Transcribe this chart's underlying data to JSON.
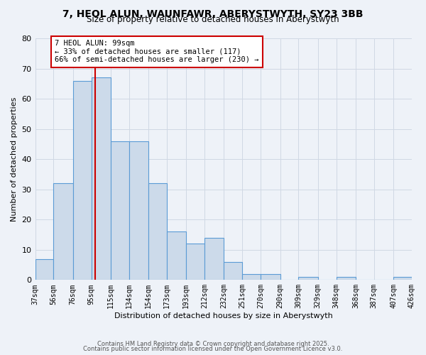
{
  "title": "7, HEOL ALUN, WAUNFAWR, ABERYSTWYTH, SY23 3BB",
  "subtitle": "Size of property relative to detached houses in Aberystwyth",
  "xlabel": "Distribution of detached houses by size in Aberystwyth",
  "ylabel": "Number of detached properties",
  "bins": [
    37,
    56,
    76,
    95,
    115,
    134,
    154,
    173,
    193,
    212,
    232,
    251,
    270,
    290,
    309,
    329,
    348,
    368,
    387,
    407,
    426
  ],
  "counts": [
    7,
    32,
    66,
    67,
    46,
    46,
    32,
    16,
    12,
    14,
    6,
    2,
    2,
    0,
    1,
    0,
    1,
    0,
    0,
    1
  ],
  "bar_color": "#ccdaea",
  "bar_edge_color": "#5b9bd5",
  "grid_color": "#d0d8e4",
  "vline_x": 99,
  "vline_color": "#cc0000",
  "annotation_text": "7 HEOL ALUN: 99sqm\n← 33% of detached houses are smaller (117)\n66% of semi-detached houses are larger (230) →",
  "annotation_box_edge": "#cc0000",
  "annotation_fontsize": 7.5,
  "ylim": [
    0,
    80
  ],
  "yticks": [
    0,
    10,
    20,
    30,
    40,
    50,
    60,
    70,
    80
  ],
  "tick_labels": [
    "37sqm",
    "56sqm",
    "76sqm",
    "95sqm",
    "115sqm",
    "134sqm",
    "154sqm",
    "173sqm",
    "193sqm",
    "212sqm",
    "232sqm",
    "251sqm",
    "270sqm",
    "290sqm",
    "309sqm",
    "329sqm",
    "348sqm",
    "368sqm",
    "387sqm",
    "407sqm",
    "426sqm"
  ],
  "footer1": "Contains HM Land Registry data © Crown copyright and database right 2025.",
  "footer2": "Contains public sector information licensed under the Open Government Licence v3.0.",
  "background_color": "#eef2f8",
  "title_fontsize": 10,
  "subtitle_fontsize": 8.5,
  "footer_fontsize": 6,
  "axis_label_fontsize": 8,
  "ytick_fontsize": 8,
  "xtick_fontsize": 7
}
